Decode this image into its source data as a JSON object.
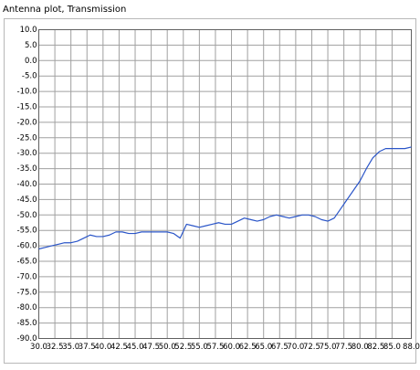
{
  "chart_data": {
    "type": "line",
    "title": "Antenna plot, Transmission",
    "x": [
      30,
      31,
      32,
      33,
      34,
      35,
      36,
      37,
      38,
      39,
      40,
      41,
      42,
      43,
      44,
      45,
      46,
      47,
      48,
      49,
      50,
      51,
      52,
      53,
      54,
      55,
      56,
      57,
      58,
      59,
      60,
      61,
      62,
      63,
      64,
      65,
      66,
      67,
      68,
      69,
      70,
      71,
      72,
      73,
      74,
      75,
      76,
      77,
      78,
      79,
      80,
      81,
      82,
      83,
      84,
      85,
      86,
      87,
      88
    ],
    "values": [
      -61,
      -60.5,
      -60,
      -59.5,
      -59,
      -59,
      -58.5,
      -57.5,
      -56.5,
      -57,
      -57,
      -56.5,
      -55.5,
      -55.5,
      -56,
      -56,
      -55.5,
      -55.5,
      -55.5,
      -55.5,
      -55.5,
      -56,
      -57.5,
      -53,
      -53.5,
      -54,
      -53.5,
      -53,
      -52.5,
      -53,
      -53,
      -52,
      -51,
      -51.5,
      -52,
      -51.5,
      -50.5,
      -50,
      -50.5,
      -51,
      -50.5,
      -50,
      -50,
      -50.5,
      -51.5,
      -52,
      -51,
      -48,
      -45,
      -42,
      -39,
      -35,
      -31.5,
      -29.5,
      -28.5,
      -28.5,
      -28.5,
      -28.5,
      -28
    ],
    "color": "#2a55c8",
    "xlim": [
      30,
      88
    ],
    "ylim": [
      -90,
      10
    ],
    "xticks": [
      {
        "value": 30,
        "label": "30.0"
      },
      {
        "value": 32.5,
        "label": "32.5"
      },
      {
        "value": 35,
        "label": "35.0"
      },
      {
        "value": 37.5,
        "label": "37.5"
      },
      {
        "value": 40,
        "label": "40.0"
      },
      {
        "value": 42.5,
        "label": "42.5"
      },
      {
        "value": 45,
        "label": "45.0"
      },
      {
        "value": 47.5,
        "label": "47.5"
      },
      {
        "value": 50,
        "label": "50.0"
      },
      {
        "value": 52.5,
        "label": "52.5"
      },
      {
        "value": 55,
        "label": "55.0"
      },
      {
        "value": 57.5,
        "label": "57.5"
      },
      {
        "value": 60,
        "label": "60.0"
      },
      {
        "value": 62.5,
        "label": "62.5"
      },
      {
        "value": 65,
        "label": "65.0"
      },
      {
        "value": 67.5,
        "label": "67.5"
      },
      {
        "value": 70,
        "label": "70.0"
      },
      {
        "value": 72.5,
        "label": "72.5"
      },
      {
        "value": 75,
        "label": "75.0"
      },
      {
        "value": 77.5,
        "label": "77.5"
      },
      {
        "value": 80,
        "label": "80.0"
      },
      {
        "value": 82.5,
        "label": "82.5"
      },
      {
        "value": 85,
        "label": "85.0"
      },
      {
        "value": 88,
        "label": "88.0"
      }
    ],
    "yticks": [
      {
        "value": 10,
        "label": "10.0"
      },
      {
        "value": 5,
        "label": "5.0"
      },
      {
        "value": 0,
        "label": "0.0"
      },
      {
        "value": -5,
        "label": "-5.0"
      },
      {
        "value": -10,
        "label": "-10.0"
      },
      {
        "value": -15,
        "label": "-15.0"
      },
      {
        "value": -20,
        "label": "-20.0"
      },
      {
        "value": -25,
        "label": "-25.0"
      },
      {
        "value": -30,
        "label": "-30.0"
      },
      {
        "value": -35,
        "label": "-35.0"
      },
      {
        "value": -40,
        "label": "-40.0"
      },
      {
        "value": -45,
        "label": "-45.0"
      },
      {
        "value": -50,
        "label": "-50.0"
      },
      {
        "value": -55,
        "label": "-55.0"
      },
      {
        "value": -60,
        "label": "-60.0"
      },
      {
        "value": -65,
        "label": "-65.0"
      },
      {
        "value": -70,
        "label": "-70.0"
      },
      {
        "value": -75,
        "label": "-75.0"
      },
      {
        "value": -80,
        "label": "-80.0"
      },
      {
        "value": -85,
        "label": "-85.0"
      },
      {
        "value": -90,
        "label": "-90.0"
      }
    ],
    "grid": true
  }
}
